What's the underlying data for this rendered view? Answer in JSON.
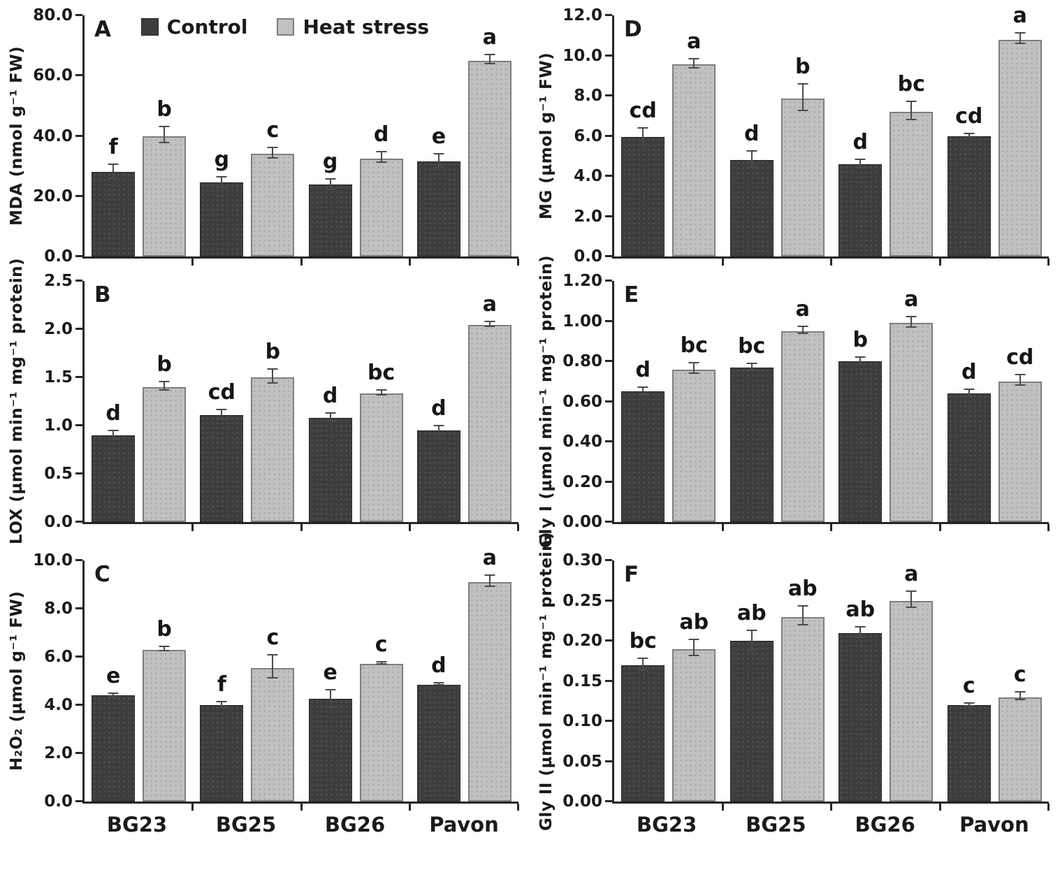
{
  "figure": {
    "legend": {
      "items": [
        {
          "label": "Control",
          "color": "#3d3d3d"
        },
        {
          "label": "Heat stress",
          "color": "#c1c1c1"
        }
      ],
      "position": "top-inside-panel-A"
    },
    "colors": {
      "control_bar": "#3d3d3d",
      "heat_bar": "#c1c1c1",
      "heat_bar_border": "#7e7e7e",
      "axis": "#262626",
      "error_bar": "#4a4a4a"
    },
    "categories": [
      "BG23",
      "BG25",
      "BG26",
      "Pavon"
    ]
  },
  "chart_data": [
    {
      "type": "bar",
      "panel": "A",
      "ylabel": "MDA (nmol g⁻¹ FW)",
      "ylim": [
        0,
        80
      ],
      "yticks": [
        "0.0",
        "20.0",
        "40.0",
        "60.0",
        "80.0"
      ],
      "categories": [
        "BG23",
        "BG25",
        "BG26",
        "Pavon"
      ],
      "grid": false,
      "show_xlabels": false,
      "show_legend": true,
      "series": [
        {
          "name": "Control",
          "values": [
            28.0,
            24.5,
            23.8,
            31.5
          ],
          "errors": [
            2.5,
            2.0,
            2.0,
            2.5
          ],
          "letters": [
            "f",
            "g",
            "g",
            "e"
          ]
        },
        {
          "name": "Heat stress",
          "values": [
            40.0,
            34.0,
            32.5,
            65.0
          ],
          "errors": [
            3.0,
            2.0,
            2.0,
            1.8
          ],
          "letters": [
            "b",
            "c",
            "d",
            "a"
          ]
        }
      ]
    },
    {
      "type": "bar",
      "panel": "B",
      "ylabel": "LOX (µmol min⁻¹ mg⁻¹ protein)",
      "ylim": [
        0,
        2.5
      ],
      "yticks": [
        "0.0",
        "0.5",
        "1.0",
        "1.5",
        "2.0",
        "2.5"
      ],
      "categories": [
        "BG23",
        "BG25",
        "BG26",
        "Pavon"
      ],
      "grid": false,
      "show_xlabels": false,
      "show_legend": false,
      "series": [
        {
          "name": "Control",
          "values": [
            0.9,
            1.11,
            1.08,
            0.95
          ],
          "errors": [
            0.05,
            0.06,
            0.05,
            0.05
          ],
          "letters": [
            "d",
            "cd",
            "d",
            "d"
          ]
        },
        {
          "name": "Heat stress",
          "values": [
            1.4,
            1.5,
            1.33,
            2.04
          ],
          "errors": [
            0.05,
            0.08,
            0.03,
            0.03
          ],
          "letters": [
            "b",
            "b",
            "bc",
            "a"
          ]
        }
      ]
    },
    {
      "type": "bar",
      "panel": "C",
      "ylabel": "H₂O₂ (µmol g⁻¹ FW)",
      "ylim": [
        0,
        10
      ],
      "yticks": [
        "0.0",
        "2.0",
        "4.0",
        "6.0",
        "8.0",
        "10.0"
      ],
      "categories": [
        "BG23",
        "BG25",
        "BG26",
        "Pavon"
      ],
      "grid": false,
      "show_xlabels": true,
      "show_legend": false,
      "series": [
        {
          "name": "Control",
          "values": [
            4.4,
            4.0,
            4.25,
            4.85
          ],
          "errors": [
            0.1,
            0.15,
            0.4,
            0.07
          ],
          "letters": [
            "e",
            "f",
            "e",
            "d"
          ]
        },
        {
          "name": "Heat stress",
          "values": [
            6.3,
            5.55,
            5.7,
            9.1
          ],
          "errors": [
            0.12,
            0.5,
            0.08,
            0.25
          ],
          "letters": [
            "b",
            "c",
            "c",
            "a"
          ]
        }
      ]
    },
    {
      "type": "bar",
      "panel": "D",
      "ylabel": "MG (µmol g⁻¹ FW)",
      "ylim": [
        0,
        12
      ],
      "yticks": [
        "0.0",
        "2.0",
        "4.0",
        "6.0",
        "8.0",
        "10.0",
        "12.0"
      ],
      "categories": [
        "BG23",
        "BG25",
        "BG26",
        "Pavon"
      ],
      "grid": false,
      "show_xlabels": false,
      "show_legend": false,
      "series": [
        {
          "name": "Control",
          "values": [
            5.95,
            4.8,
            4.6,
            5.98
          ],
          "errors": [
            0.45,
            0.45,
            0.25,
            0.15
          ],
          "letters": [
            "cd",
            "d",
            "d",
            "cd"
          ]
        },
        {
          "name": "Heat stress",
          "values": [
            9.55,
            7.85,
            7.2,
            10.8
          ],
          "errors": [
            0.25,
            0.7,
            0.5,
            0.3
          ],
          "letters": [
            "a",
            "b",
            "bc",
            "a"
          ]
        }
      ]
    },
    {
      "type": "bar",
      "panel": "E",
      "ylabel": "Gly I (µmol min⁻¹ mg⁻¹ protein)",
      "ylim": [
        0,
        1.2
      ],
      "yticks": [
        "0.00",
        "0.20",
        "0.40",
        "0.60",
        "0.80",
        "1.00",
        "1.20"
      ],
      "categories": [
        "BG23",
        "BG25",
        "BG26",
        "Pavon"
      ],
      "grid": false,
      "show_xlabels": false,
      "show_legend": false,
      "series": [
        {
          "name": "Control",
          "values": [
            0.65,
            0.77,
            0.8,
            0.64
          ],
          "errors": [
            0.02,
            0.02,
            0.02,
            0.02
          ],
          "letters": [
            "d",
            "bc",
            "b",
            "d"
          ]
        },
        {
          "name": "Heat stress",
          "values": [
            0.76,
            0.95,
            0.99,
            0.7
          ],
          "errors": [
            0.03,
            0.02,
            0.03,
            0.03
          ],
          "letters": [
            "bc",
            "a",
            "a",
            "cd"
          ]
        }
      ]
    },
    {
      "type": "bar",
      "panel": "F",
      "ylabel": "Gly II (µmol min⁻¹ mg⁻¹ protein)",
      "ylim": [
        0,
        0.3
      ],
      "yticks": [
        "0.00",
        "0.05",
        "0.10",
        "0.15",
        "0.20",
        "0.25",
        "0.30"
      ],
      "categories": [
        "BG23",
        "BG25",
        "BG26",
        "Pavon"
      ],
      "grid": false,
      "show_xlabels": true,
      "show_legend": false,
      "series": [
        {
          "name": "Control",
          "values": [
            0.17,
            0.2,
            0.21,
            0.12
          ],
          "errors": [
            0.008,
            0.013,
            0.007,
            0.003
          ],
          "letters": [
            "bc",
            "ab",
            "ab",
            "c"
          ]
        },
        {
          "name": "Heat stress",
          "values": [
            0.19,
            0.23,
            0.25,
            0.13
          ],
          "errors": [
            0.011,
            0.013,
            0.011,
            0.006
          ],
          "letters": [
            "ab",
            "ab",
            "a",
            "c"
          ]
        }
      ]
    }
  ]
}
